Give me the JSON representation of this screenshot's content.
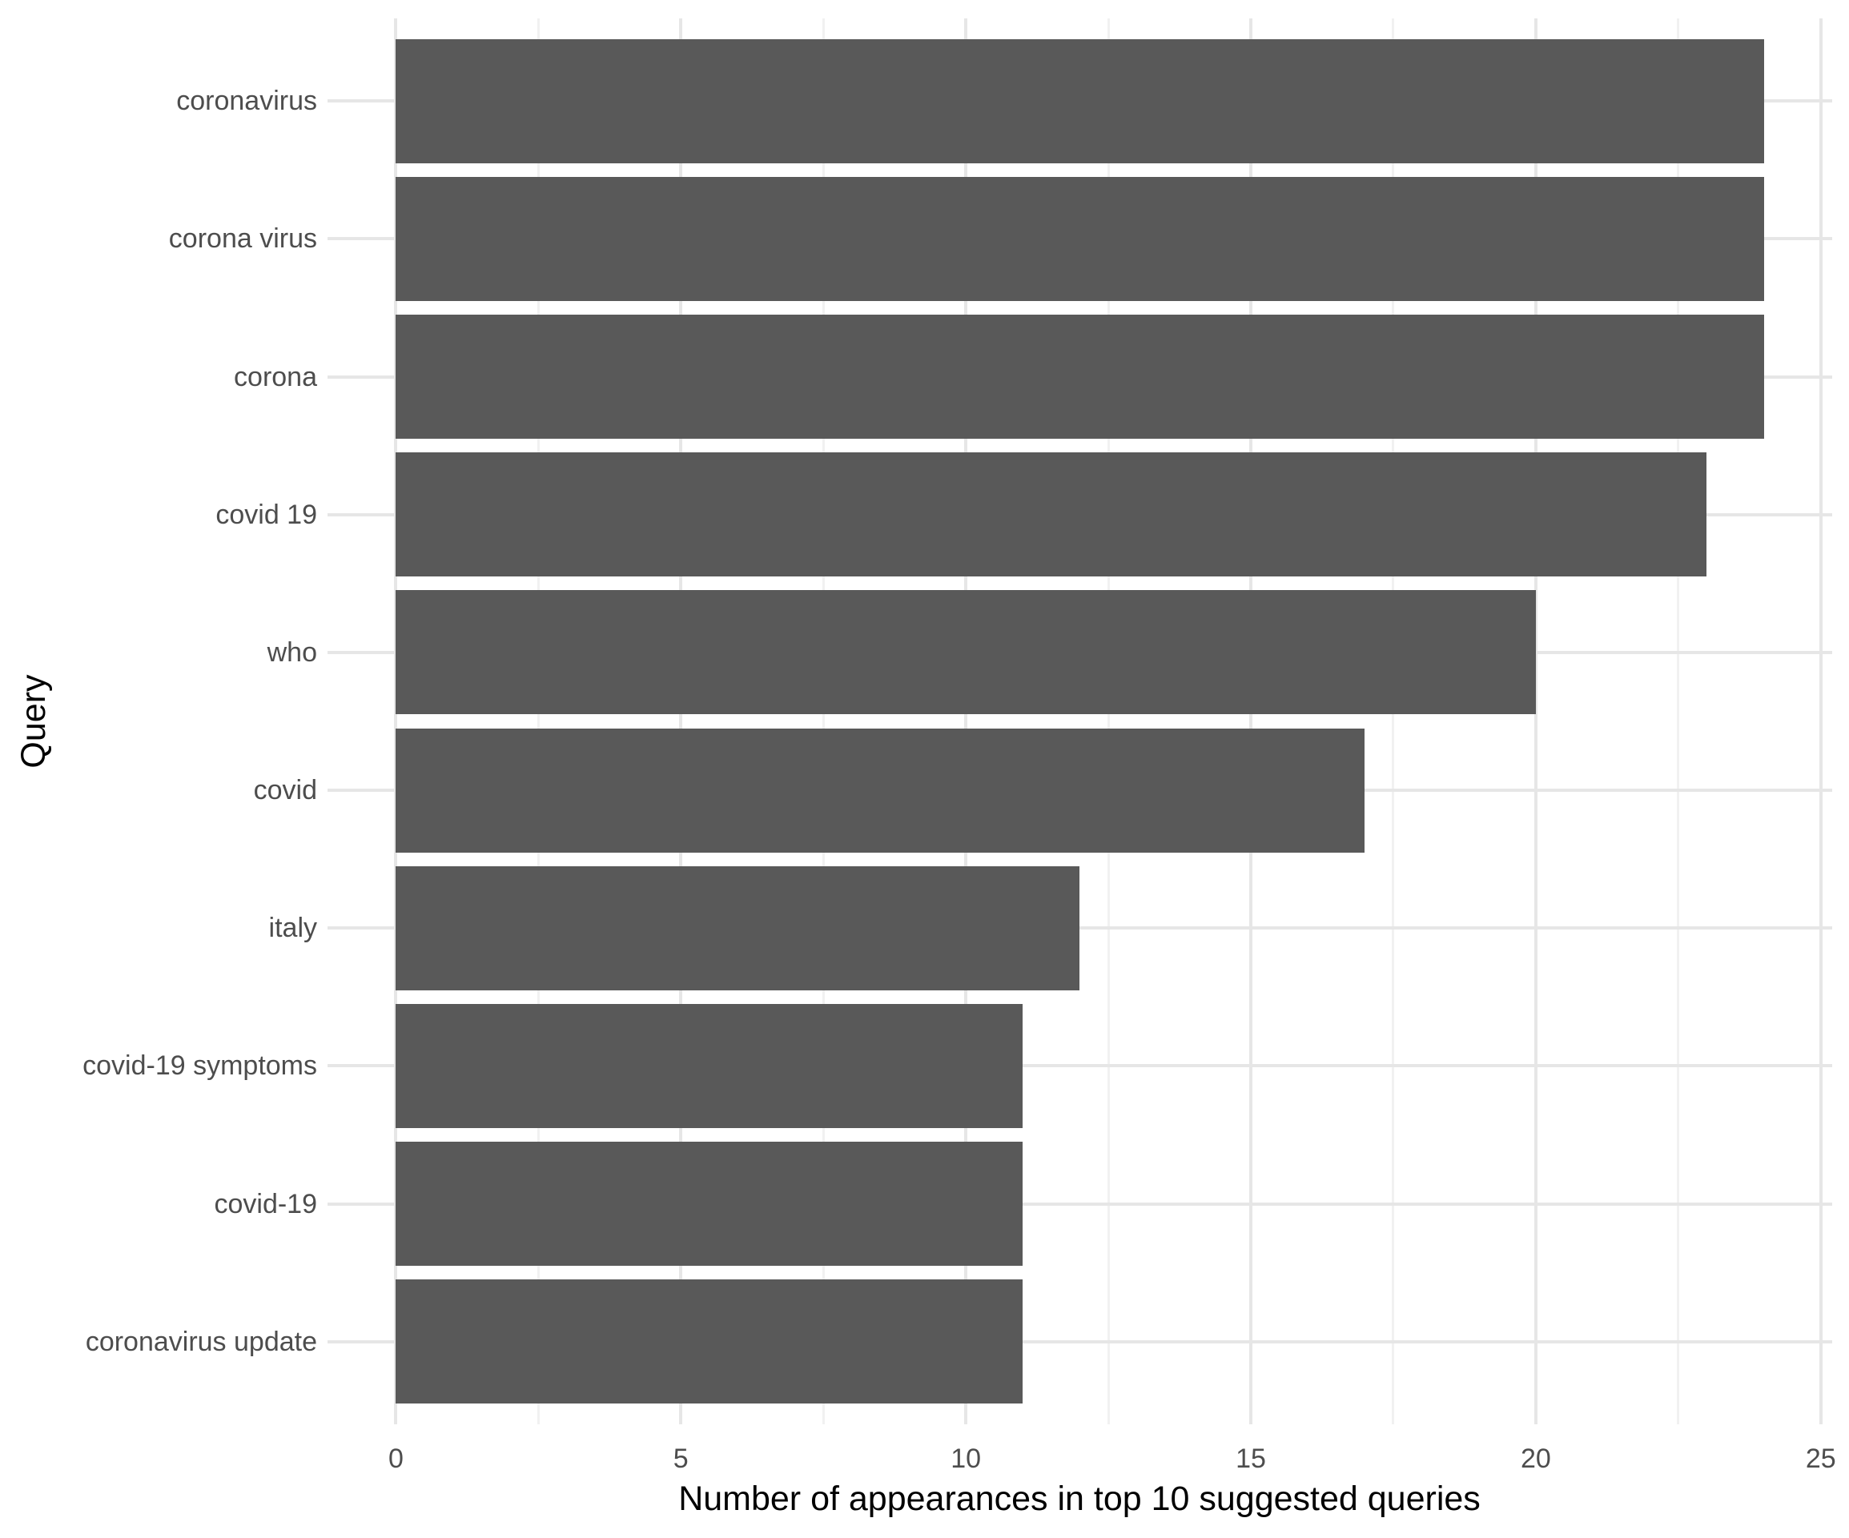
{
  "chart_data": {
    "type": "bar",
    "orientation": "horizontal",
    "title": "",
    "xlabel": "Number of appearances in top 10 suggested queries",
    "ylabel": "Query",
    "categories": [
      "coronavirus",
      "corona virus",
      "corona",
      "covid 19",
      "who",
      "covid",
      "italy",
      "covid-19 symptoms",
      "covid-19",
      "coronavirus update"
    ],
    "values": [
      24,
      24,
      24,
      23,
      20,
      17,
      12,
      11,
      11,
      11
    ],
    "xlim": [
      0,
      25
    ],
    "x_ticks": [
      0,
      5,
      10,
      15,
      20,
      25
    ],
    "x_minor_ticks": [
      2.5,
      7.5,
      12.5,
      17.5,
      22.5
    ],
    "grid": "major and minor vertical, major horizontal per category",
    "legend": "none",
    "colors": {
      "bar": "#595959",
      "grid_major": "#E6E6E6",
      "grid_minor": "#F1F1F1",
      "axis_text": "#4D4D4D",
      "axis_title": "#000000",
      "background": "#FFFFFF"
    }
  }
}
